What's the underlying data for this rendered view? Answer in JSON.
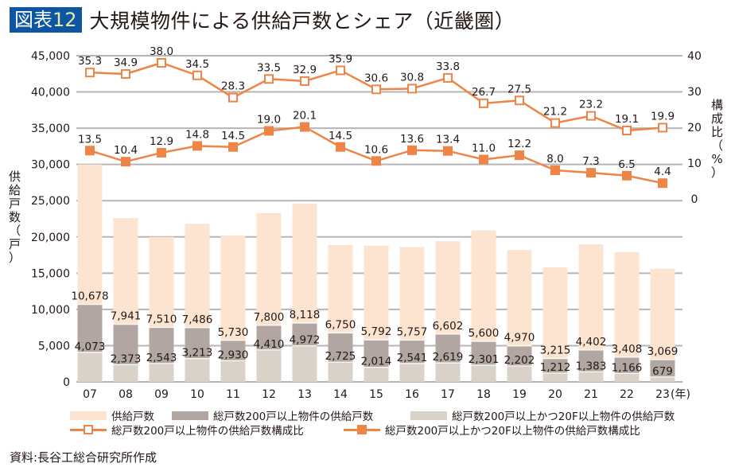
{
  "header": {
    "badge_label": "図表",
    "badge_number": "12",
    "title": "大規模物件による供給戸数とシェア（近畿圏）"
  },
  "axes": {
    "left_label_chars": [
      "供",
      "給",
      "戸",
      "数",
      "（",
      "戸",
      "）"
    ],
    "right_label_chars": [
      "構",
      "成",
      "比",
      "（",
      "%",
      "）"
    ],
    "year_suffix": "(年)"
  },
  "chart_data": {
    "type": "bar",
    "title": "大規模物件による供給戸数とシェア（近畿圏）",
    "xlabel": "(年)",
    "ylabel": "供給戸数（戸）",
    "y2label": "構成比（%）",
    "categories": [
      "07",
      "08",
      "09",
      "10",
      "11",
      "12",
      "13",
      "14",
      "15",
      "16",
      "17",
      "18",
      "19",
      "20",
      "21",
      "22",
      "23"
    ],
    "ylim": [
      0,
      45000
    ],
    "yticks": [
      0,
      5000,
      10000,
      15000,
      20000,
      25000,
      30000,
      35000,
      40000,
      45000
    ],
    "ytick_labels": [
      "0",
      "5,000",
      "10,000",
      "15,000",
      "20,000",
      "25,000",
      "30,000",
      "35,000",
      "40,000",
      "45,000"
    ],
    "y2lim": [
      0,
      40
    ],
    "y2ticks": [
      0,
      10,
      20,
      30,
      40
    ],
    "y2tick_labels": [
      "0",
      "10",
      "20",
      "30",
      "40"
    ],
    "grid": true,
    "legend_position": "bottom",
    "series": [
      {
        "name": "供給戸数",
        "kind": "bar",
        "axis": "left",
        "color": "#fce4d0",
        "labeled": false,
        "values": [
          30000,
          22600,
          20000,
          21800,
          20200,
          23300,
          24600,
          18900,
          18800,
          18600,
          19400,
          20900,
          18200,
          15800,
          19000,
          17900,
          15600
        ]
      },
      {
        "name": "総戸数200戸以上物件の供給戸数",
        "kind": "bar",
        "axis": "left",
        "color": "#b2a6a2",
        "labeled": true,
        "values": [
          10678,
          7941,
          7510,
          7486,
          5730,
          7800,
          8118,
          6750,
          5792,
          5757,
          6602,
          5600,
          4970,
          3215,
          4402,
          3408,
          3069
        ],
        "value_labels": [
          "10,678",
          "7,941",
          "7,510",
          "7,486",
          "5,730",
          "7,800",
          "8,118",
          "6,750",
          "5,792",
          "5,757",
          "6,602",
          "5,600",
          "4,970",
          "3,215",
          "4,402",
          "3,408",
          "3,069"
        ]
      },
      {
        "name": "総戸数200戸以上かつ20F以上物件の供給戸数",
        "kind": "bar",
        "axis": "left",
        "color": "#d9d2c9",
        "labeled": true,
        "values": [
          4073,
          2373,
          2543,
          3213,
          2930,
          4410,
          4972,
          2725,
          2014,
          2541,
          2619,
          2301,
          2202,
          1212,
          1383,
          1166,
          679
        ],
        "value_labels": [
          "4,073",
          "2,373",
          "2,543",
          "3,213",
          "2,930",
          "4,410",
          "4,972",
          "2,725",
          "2,014",
          "2,541",
          "2,619",
          "2,301",
          "2,202",
          "1,212",
          "1,383",
          "1,166",
          "679"
        ]
      },
      {
        "name": "総戸数200戸以上物件の供給戸数構成比",
        "kind": "line",
        "axis": "right",
        "marker": "hollow-square",
        "color": "#ee8547",
        "values": [
          35.3,
          34.9,
          38.0,
          34.5,
          28.3,
          33.5,
          32.9,
          35.9,
          30.6,
          30.8,
          33.8,
          26.7,
          27.5,
          21.2,
          23.2,
          19.1,
          19.9
        ],
        "value_labels": [
          "35.3",
          "34.9",
          "38.0",
          "34.5",
          "28.3",
          "33.5",
          "32.9",
          "35.9",
          "30.6",
          "30.8",
          "33.8",
          "26.7",
          "27.5",
          "21.2",
          "23.2",
          "19.1",
          "19.9"
        ]
      },
      {
        "name": "総戸数200戸以上かつ20F以上物件の供給戸数構成比",
        "kind": "line",
        "axis": "right",
        "marker": "filled-square",
        "color": "#ee8547",
        "values": [
          13.5,
          10.4,
          12.9,
          14.8,
          14.5,
          19.0,
          20.1,
          14.5,
          10.6,
          13.6,
          13.4,
          11.0,
          12.2,
          8.0,
          7.3,
          6.5,
          4.4
        ],
        "value_labels": [
          "13.5",
          "10.4",
          "12.9",
          "14.8",
          "14.5",
          "19.0",
          "20.1",
          "14.5",
          "10.6",
          "13.6",
          "13.4",
          "11.0",
          "12.2",
          "8.0",
          "7.3",
          "6.5",
          "4.4"
        ]
      }
    ]
  },
  "legend": {
    "items": [
      {
        "label": "供給戸数"
      },
      {
        "label": "総戸数200戸以上物件の供給戸数"
      },
      {
        "label": "総戸数200戸以上かつ20F以上物件の供給戸数"
      },
      {
        "label": "総戸数200戸以上物件の供給戸数構成比"
      },
      {
        "label": "総戸数200戸以上かつ20F以上物件の供給戸数構成比"
      }
    ]
  },
  "footer": {
    "source": "資料:長谷工総合研究所作成"
  }
}
